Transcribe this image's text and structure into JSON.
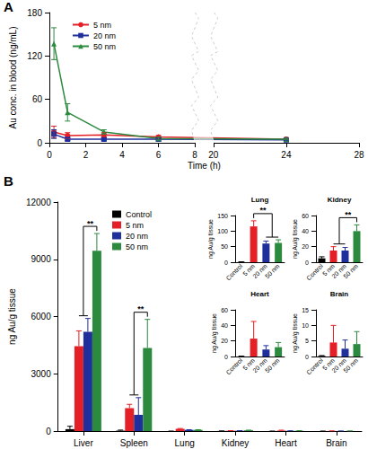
{
  "chart_data": [
    {
      "type": "line",
      "panel": "A",
      "xlabel": "Time (h)",
      "ylabel": "Au conc. in blood (ng/mL)",
      "xlim": [
        0,
        28
      ],
      "xticks": [
        0,
        2,
        4,
        6,
        8,
        20,
        24,
        28
      ],
      "xbreak": [
        8,
        20
      ],
      "ylim": [
        0,
        180
      ],
      "yticks": [
        0,
        60,
        120,
        180
      ],
      "grid": false,
      "legend": "upper left",
      "x": [
        0.25,
        1,
        3,
        6,
        24
      ],
      "series": [
        {
          "name": "5 nm",
          "color": "#e41f26",
          "marker": "circle",
          "values": [
            15,
            10,
            11,
            8,
            5
          ],
          "errors": [
            8,
            4,
            3,
            2,
            1
          ]
        },
        {
          "name": "20 nm",
          "color": "#1f2f9c",
          "marker": "square",
          "values": [
            12,
            5,
            5,
            5,
            4
          ],
          "errors": [
            6,
            2,
            2,
            1,
            1
          ]
        },
        {
          "name": "50 nm",
          "color": "#2b8a3e",
          "marker": "triangle",
          "values": [
            137,
            42,
            15,
            6,
            5
          ],
          "errors": [
            22,
            12,
            3,
            2,
            1
          ]
        }
      ]
    },
    {
      "type": "bar",
      "panel": "B",
      "ylabel": "ng Au/g tissue",
      "categories": [
        "Liver",
        "Spleen",
        "Lung",
        "Kidney",
        "Heart",
        "Brain"
      ],
      "ylim": [
        0,
        12000
      ],
      "yticks": [
        0,
        3000,
        6000,
        9000,
        12000
      ],
      "grid": false,
      "legend": "upper left",
      "series": [
        {
          "name": "Control",
          "color": "#000000",
          "values": [
            100,
            20,
            0,
            5,
            0,
            0
          ],
          "errors": [
            150,
            30,
            0,
            2,
            0,
            0
          ]
        },
        {
          "name": "5 nm",
          "color": "#e41f26",
          "values": [
            4450,
            1200,
            115,
            15,
            23,
            4.5
          ],
          "errors": [
            800,
            200,
            18,
            5,
            22,
            5.5
          ]
        },
        {
          "name": "20 nm",
          "color": "#1f2f9c",
          "values": [
            5200,
            850,
            60,
            15,
            9,
            2.5
          ],
          "errors": [
            700,
            900,
            8,
            4,
            5,
            2.8
          ]
        },
        {
          "name": "50 nm",
          "color": "#2b8a3e",
          "values": [
            9450,
            4350,
            62,
            40,
            12,
            4
          ],
          "errors": [
            900,
            1500,
            10,
            8,
            6,
            4
          ]
        }
      ],
      "annotations": [
        {
          "text": "**",
          "category": "Liver",
          "from": [
            "5 nm",
            "20 nm"
          ],
          "to": [
            "50 nm"
          ]
        },
        {
          "text": "**",
          "category": "Spleen",
          "from": [
            "5 nm",
            "20 nm"
          ],
          "to": [
            "50 nm"
          ]
        }
      ]
    },
    {
      "type": "bar",
      "title": "Lung",
      "ylabel": "ng Au/g tissue",
      "categories": [
        "Control",
        "5 nm",
        "20 nm",
        "50 nm"
      ],
      "colors": [
        "#000000",
        "#e41f26",
        "#1f2f9c",
        "#2b8a3e"
      ],
      "values": [
        1,
        115,
        60,
        62
      ],
      "errors": [
        0.5,
        18,
        8,
        10
      ],
      "ylim": [
        0,
        150
      ],
      "yticks": [
        0,
        50,
        100,
        150
      ],
      "grid": false,
      "annotations": [
        {
          "text": "**",
          "from": [
            "5 nm"
          ],
          "to": [
            "20 nm",
            "50 nm"
          ]
        }
      ]
    },
    {
      "type": "bar",
      "title": "Kidney",
      "ylabel": "ng Au/g tissue",
      "categories": [
        "Control",
        "5 nm",
        "20 nm",
        "50 nm"
      ],
      "colors": [
        "#000000",
        "#e41f26",
        "#1f2f9c",
        "#2b8a3e"
      ],
      "values": [
        5,
        15,
        15,
        40
      ],
      "errors": [
        2,
        5,
        4,
        8
      ],
      "ylim": [
        0,
        60
      ],
      "yticks": [
        0,
        20,
        40,
        60
      ],
      "grid": false,
      "annotations": [
        {
          "text": "**",
          "from": [
            "5 nm",
            "20 nm"
          ],
          "to": [
            "50 nm"
          ]
        }
      ]
    },
    {
      "type": "bar",
      "title": "Heart",
      "ylabel": "ng Au/g tissue",
      "categories": [
        "Control",
        "5 nm",
        "20 nm",
        "50 nm"
      ],
      "colors": [
        "#000000",
        "#e41f26",
        "#1f2f9c",
        "#2b8a3e"
      ],
      "values": [
        0.3,
        23,
        9,
        12
      ],
      "errors": [
        0.2,
        22,
        5,
        6
      ],
      "ylim": [
        0,
        60
      ],
      "yticks": [
        0,
        20,
        40,
        60
      ],
      "grid": false
    },
    {
      "type": "bar",
      "title": "Brain",
      "ylabel": "ng Au/g tissue",
      "categories": [
        "Control",
        "5 nm",
        "20 nm",
        "50 nm"
      ],
      "colors": [
        "#000000",
        "#e41f26",
        "#1f2f9c",
        "#2b8a3e"
      ],
      "values": [
        0.2,
        4.5,
        2.5,
        4
      ],
      "errors": [
        0.1,
        5.5,
        2.8,
        4
      ],
      "ylim": [
        0,
        15
      ],
      "yticks": [
        0,
        5,
        10,
        15
      ],
      "grid": false
    }
  ]
}
